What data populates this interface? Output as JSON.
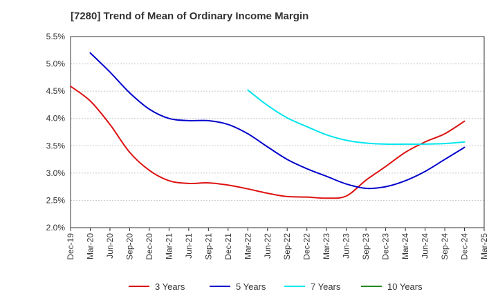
{
  "page": {
    "title": "[7280]  Trend of Mean of Ordinary Income Margin"
  },
  "chart_data": {
    "type": "line",
    "title": "[7280]  Trend of Mean of Ordinary Income Margin",
    "xlabel": "",
    "ylabel": "",
    "y_unit": "%",
    "ylim": [
      2.0,
      5.5
    ],
    "y_ticks": [
      2.0,
      2.5,
      3.0,
      3.5,
      4.0,
      4.5,
      5.0,
      5.5
    ],
    "y_tick_labels": [
      "2.0%",
      "2.5%",
      "3.0%",
      "3.5%",
      "4.0%",
      "4.5%",
      "5.0%",
      "5.5%"
    ],
    "categories": [
      "Dec-19",
      "Mar-20",
      "Jun-20",
      "Sep-20",
      "Dec-20",
      "Mar-21",
      "Jun-21",
      "Sep-21",
      "Dec-21",
      "Mar-22",
      "Jun-22",
      "Sep-22",
      "Dec-22",
      "Mar-23",
      "Jun-23",
      "Sep-23",
      "Dec-23",
      "Mar-24",
      "Jun-24",
      "Sep-24",
      "Dec-24",
      "Mar-25"
    ],
    "grid": true,
    "legend_position": "bottom",
    "series": [
      {
        "name": "3 Years",
        "color": "#dd1111",
        "values": [
          4.59,
          4.32,
          3.89,
          3.38,
          3.05,
          2.86,
          2.81,
          2.82,
          2.78,
          2.71,
          2.63,
          2.57,
          2.56,
          2.54,
          2.58,
          2.87,
          3.12,
          3.38,
          3.57,
          3.72,
          3.95,
          null
        ]
      },
      {
        "name": "5 Years",
        "color": "#0000cc",
        "values": [
          null,
          5.2,
          4.85,
          4.47,
          4.17,
          4.0,
          3.96,
          3.96,
          3.89,
          3.72,
          3.48,
          3.25,
          3.08,
          2.94,
          2.8,
          2.72,
          2.75,
          2.86,
          3.03,
          3.25,
          3.47,
          null
        ]
      },
      {
        "name": "7 Years",
        "color": "#00e5ee",
        "values": [
          null,
          null,
          null,
          null,
          null,
          null,
          null,
          null,
          null,
          4.52,
          4.24,
          4.01,
          3.85,
          3.7,
          3.6,
          3.55,
          3.53,
          3.53,
          3.53,
          3.54,
          3.57,
          null
        ]
      },
      {
        "name": "10 Years",
        "color": "#228b22",
        "values": [
          null,
          null,
          null,
          null,
          null,
          null,
          null,
          null,
          null,
          null,
          null,
          null,
          null,
          null,
          null,
          null,
          null,
          null,
          null,
          null,
          null,
          null
        ]
      }
    ]
  }
}
